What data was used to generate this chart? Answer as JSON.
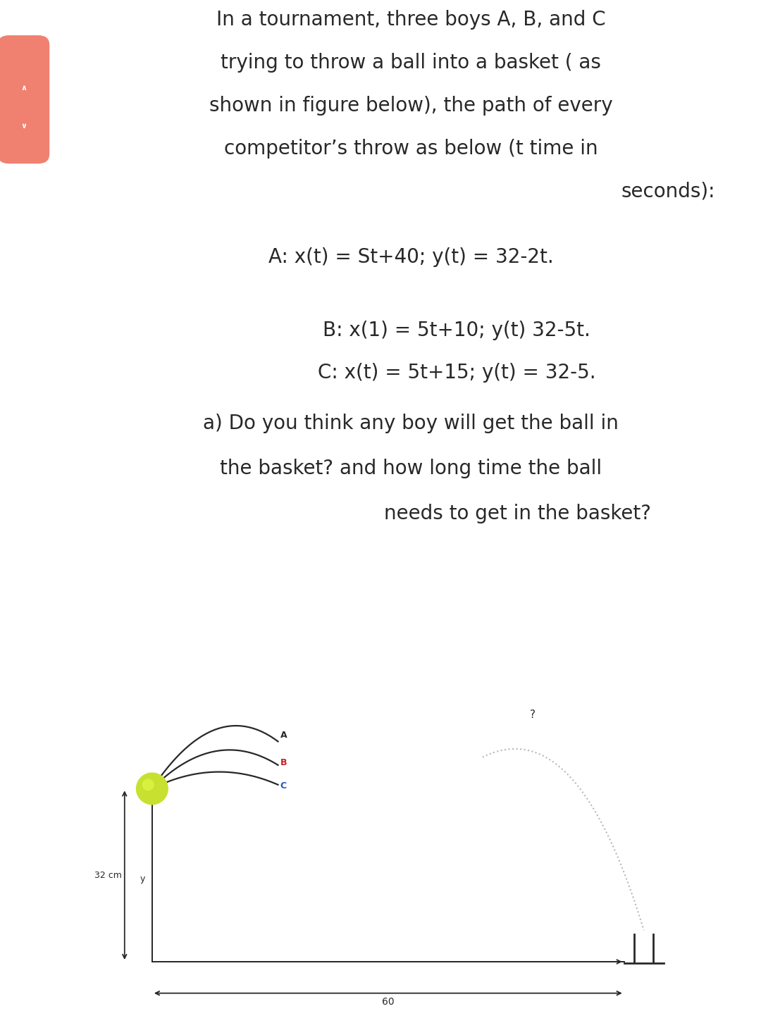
{
  "bg_color": "#ffffff",
  "title_lines": [
    "In a tournament, three boys A, B, and C",
    "trying to throw a ball into a basket ( as",
    "shown in figure below), the path of every",
    "competitor’s throw as below (t time in",
    "seconds):"
  ],
  "eq_A": "A: x(t) = St+40; y(t) = 32-2t.",
  "eq_B": "B: x(1) = 5t+10; y(t) 32-5t.",
  "eq_C": "C: x(t) = 5t+15; y(t) = 32-5.",
  "q_line1": "a) Do you think any boy will get the ball in",
  "q_line2": "the basket? and how long time the ball",
  "q_line3": "needs to get in the basket?",
  "label_32cm": "32 cm",
  "label_60": "60",
  "label_y": "y",
  "label_7": "?",
  "label_A": "A",
  "label_B": "B",
  "label_C": "C",
  "sidebar_color": "#f08070",
  "ball_color_outer": "#c8e030",
  "ball_color_inner": "#d8f040",
  "curve_color": "#282828",
  "basket_color": "#282828",
  "arrow_color": "#282828",
  "dotted_color": "#b8b8b8",
  "text_color": "#282828",
  "label_A_color": "#282828",
  "label_B_color": "#cc2020",
  "label_C_color": "#2255cc",
  "font_size_title": 20,
  "font_size_eq": 20,
  "font_size_diagram": 10
}
